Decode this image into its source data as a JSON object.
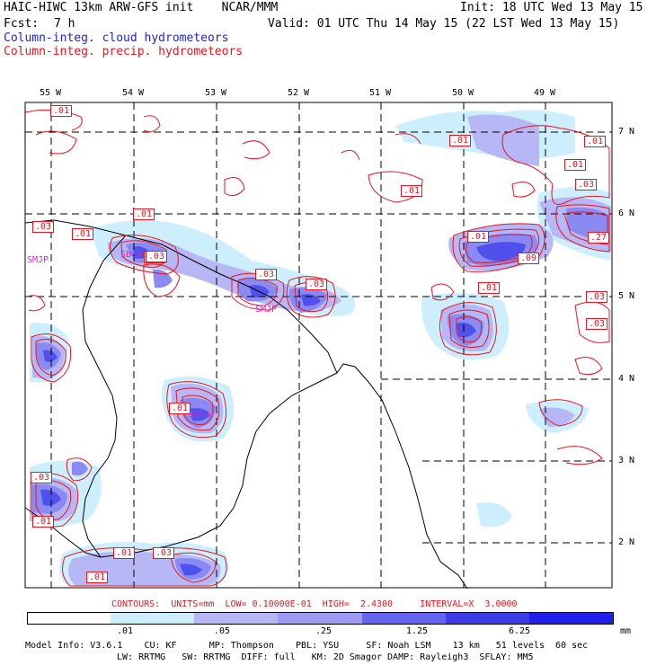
{
  "header": {
    "line1_left": "HAIC-HIWC 13km ARW-GFS init    NCAR/MMM",
    "line1_right": "Init: 18 UTC Wed 13 May 15",
    "fcst_label": "Fcst:",
    "fcst_value": "7 h",
    "valid": "Valid: 01 UTC Thu 14 May 15 (22 LST Wed 13 May 15)",
    "field_blue": "Column-integ. cloud hydrometeors",
    "field_red": "Column-integ. precip. hydrometeors"
  },
  "axes": {
    "lon_labels": [
      "55 W",
      "54 W",
      "53 W",
      "52 W",
      "51 W",
      "50 W",
      "49 W"
    ],
    "lat_labels": [
      "7 N",
      "6 N",
      "5 N",
      "4 N",
      "3 N",
      "2 N"
    ]
  },
  "contour_labels": [
    ".01",
    ".01",
    ".03",
    ".01",
    ".01",
    ".03",
    ".03",
    ".03",
    ".01",
    ".01",
    ".01",
    ".01",
    ".01",
    ".03",
    ".09",
    ".27",
    ".01",
    ".03",
    ".01",
    ".03",
    ".01",
    ".01",
    ".03",
    ".01",
    ".03"
  ],
  "station_labels": [
    "SMJP",
    "SBCA",
    "SMJP",
    "SOCA",
    "SMJP"
  ],
  "footer": {
    "contours": "CONTOURS:  UNITS=mm  LOW= 0.10000E-01  HIGH=  2.4300     INTERVAL=X  3.0000",
    "colorbar_ticks": [
      ".01",
      ".05",
      ".25",
      "1.25",
      "6.25",
      "mm"
    ],
    "colorbar_colors": [
      "#ffffff",
      "#cdeffd",
      "#b7b7f5",
      "#9c9cf4",
      "#6464f0",
      "#3c3ce8",
      "#2020ea"
    ],
    "model_line1": "Model Info: V3.6.1    CU: KF      MP: Thompson    PBL: YSU     SF: Noah LSM    13 km   51 levels  60 sec",
    "model_line2": "LW: RRTMG   SW: RRTMG  DIFF: full   KM: 2D Smagor DAMP: Rayleigh3  SFLAY: MM5"
  }
}
